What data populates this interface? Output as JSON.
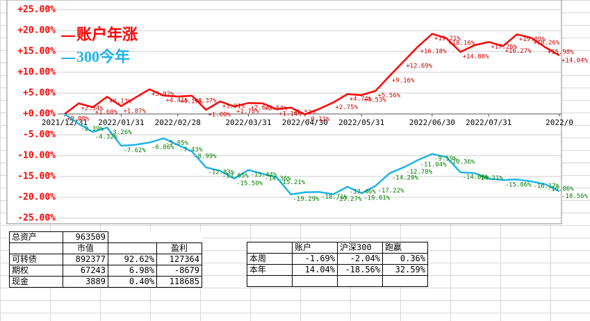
{
  "chart_data": {
    "type": "line",
    "categories": [
      "2021/12/31",
      null,
      null,
      null,
      "2022/01/31",
      null,
      null,
      null,
      "2022/02/28",
      null,
      null,
      null,
      null,
      "2022/03/31",
      null,
      null,
      null,
      "2022/04/30",
      null,
      null,
      null,
      "2022/05/31",
      null,
      null,
      null,
      null,
      "2022/06/30",
      null,
      null,
      null,
      "2022/07/31",
      null,
      null,
      null,
      null,
      "2022/0"
    ],
    "series": [
      {
        "name": "账户年涨",
        "color": "#ff0000",
        "label_color": "#d00000",
        "values": [
          0.0,
          2.54,
          1.6,
          4.13,
          1.87,
          3.9,
          5.92,
          4.41,
          4.17,
          4.37,
          1.0,
          3.01,
          1.78,
          2.63,
          2.54,
          1.14,
          1.53,
          -0.11,
          1.2,
          2.75,
          4.74,
          4.53,
          5.56,
          9.16,
          12.69,
          16.18,
          19.21,
          18.16,
          14.88,
          16.5,
          17.26,
          16.27,
          19.09,
          18.26,
          15.98,
          14.04
        ],
        "value_labels": [
          "+0.00%",
          "+2.54%",
          "+1.60%",
          "+4.13%",
          "+1.87%",
          null,
          "+5.92%",
          "+4.41%",
          "+4.17%",
          "+4.37%",
          "+1.00%",
          "+3.01%",
          "+1.78%",
          "+2.63%",
          "+2.54%",
          "+1.14%",
          "+1.53%",
          "-0.11%",
          null,
          "+2.75%",
          "+4.74%",
          "+4.53%",
          "+5.56%",
          "+9.16%",
          "+12.69%",
          "+16.18%",
          "+19.21%",
          "+18.16%",
          "+14.88%",
          null,
          "+17.26%",
          "+16.27%",
          "+19.09%",
          "+18.26%",
          "+15.98%",
          "+14.04%"
        ]
      },
      {
        "name": "300今年",
        "color": "#1fb4e8",
        "label_color": "#008000",
        "values": [
          0.0,
          -2.39,
          -4.32,
          -3.26,
          -7.62,
          -7.4,
          -6.86,
          -5.85,
          -7.43,
          -8.99,
          -12.83,
          -13.65,
          -15.5,
          -13.44,
          -14.36,
          -15.21,
          -19.29,
          -18.8,
          -18.71,
          -19.27,
          -17.46,
          -19.01,
          -17.22,
          -14.2,
          -12.78,
          -11.04,
          -9.59,
          -10.36,
          -14.0,
          -14.21,
          -15.5,
          -15.86,
          -15.7,
          -16.17,
          -16.86,
          -18.56
        ],
        "value_labels": [
          null,
          "-2.39%",
          "-4.32%",
          "-3.26%",
          "-7.62%",
          null,
          "-6.86%",
          "-5.85%",
          "-7.43%",
          "-8.99%",
          "-12.83%",
          "-13.65%",
          "-15.50%",
          "-13.44%",
          "-14.36%",
          "-15.21%",
          "-19.29%",
          null,
          "-18.71%",
          "-19.27%",
          "-17.46%",
          "-19.01%",
          "-17.22%",
          "-14.20%",
          "-12.78%",
          "-11.04%",
          "-9.59%",
          "-10.36%",
          "-14.00%",
          "-14.21%",
          null,
          "-15.86%",
          null,
          "-16.17%",
          "-16.86%",
          "-18.56%"
        ]
      }
    ],
    "ylim": [
      -25,
      25
    ],
    "yticks": [
      {
        "value": 25,
        "label": "+25.00%"
      },
      {
        "value": 20,
        "label": "+20.00%"
      },
      {
        "value": 15,
        "label": "+15.00%"
      },
      {
        "value": 10,
        "label": "+10.00%"
      },
      {
        "value": 5,
        "label": "+5.00%"
      },
      {
        "value": 0,
        "label": "+0.00%"
      },
      {
        "value": -5,
        "label": "-5.00%"
      },
      {
        "value": -10,
        "label": "-10.00%"
      },
      {
        "value": -15,
        "label": "-15.00%"
      },
      {
        "value": -20,
        "label": "-20.00%"
      },
      {
        "value": -25,
        "label": "-25.00%"
      }
    ],
    "tick_color": "#ff0000",
    "grid": true
  },
  "assets_table": {
    "total_label": "总资产",
    "total_value": "963509",
    "header": [
      null,
      "市值",
      null,
      "盈利"
    ],
    "rows": [
      [
        "可转债",
        "892377",
        "92.62%",
        "127364"
      ],
      [
        "期权",
        "67243",
        "6.98%",
        "-8679"
      ],
      [
        "现金",
        "3889",
        "0.40%",
        "118685"
      ]
    ]
  },
  "compare_table": {
    "header": [
      null,
      "账户",
      "沪深300",
      "跑赢"
    ],
    "rows": [
      [
        "本周",
        "-1.69%",
        "-2.04%",
        "0.36%"
      ],
      [
        "本年",
        "14.04%",
        "-18.56%",
        "32.59%"
      ]
    ]
  }
}
